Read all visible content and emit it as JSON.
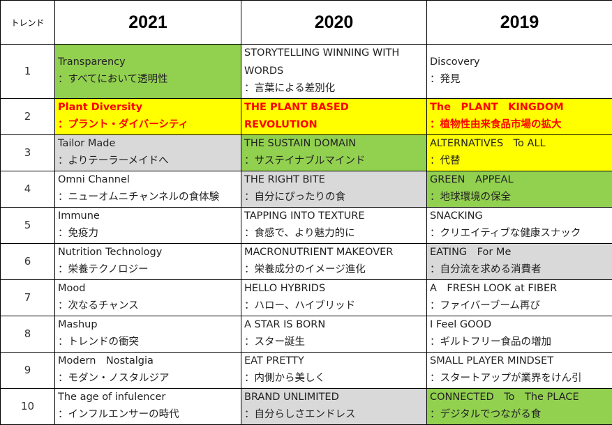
{
  "colors": {
    "green": "#92d050",
    "yellow": "#ffff00",
    "gray": "#d9d9d9",
    "white": "#ffffff",
    "highlight_text": "#ff0000"
  },
  "header": {
    "rank_label": "トレンド",
    "years": [
      "2021",
      "2020",
      "2019"
    ]
  },
  "rows": [
    {
      "rank": "1",
      "cells": [
        {
          "lines": [
            "Transparency",
            "：すべてにおいて透明性"
          ],
          "bg": "green"
        },
        {
          "lines": [
            "STORYTELLING WINNING WITH",
            "WORDS",
            "：言葉による差別化"
          ],
          "bg": "white"
        },
        {
          "lines": [
            "Discovery",
            "：発見"
          ],
          "bg": "white"
        }
      ]
    },
    {
      "rank": "2",
      "cells": [
        {
          "lines": [
            "Plant Diversity",
            "：プラント・ダイバーシティ"
          ],
          "bg": "yellow",
          "red": true
        },
        {
          "lines": [
            "THE PLANT BASED",
            "REVOLUTION"
          ],
          "bg": "yellow",
          "red": true
        },
        {
          "lines": [
            "The　PLANT　KINGDOM",
            "：植物性由来食品市場の拡大"
          ],
          "bg": "yellow",
          "red": true
        }
      ]
    },
    {
      "rank": "3",
      "cells": [
        {
          "lines": [
            "Tailor Made",
            "：よりテーラーメイドへ"
          ],
          "bg": "gray"
        },
        {
          "lines": [
            "THE SUSTAIN DOMAIN",
            "：サステイナブルマインド"
          ],
          "bg": "green"
        },
        {
          "lines": [
            "ALTERNATIVES　To ALL",
            "：代替"
          ],
          "bg": "yellow"
        }
      ]
    },
    {
      "rank": "4",
      "cells": [
        {
          "lines": [
            "Omni Channel",
            "：ニューオムニチャンネルの食体験"
          ],
          "bg": "white"
        },
        {
          "lines": [
            "THE RIGHT BITE",
            "：自分にぴったりの食"
          ],
          "bg": "gray"
        },
        {
          "lines": [
            "GREEN　APPEAL",
            "：地球環境の保全"
          ],
          "bg": "green"
        }
      ]
    },
    {
      "rank": "5",
      "cells": [
        {
          "lines": [
            "Immune",
            "：免疫力"
          ],
          "bg": "white"
        },
        {
          "lines": [
            "TAPPING INTO TEXTURE",
            "：食感で、より魅力的に"
          ],
          "bg": "white"
        },
        {
          "lines": [
            "SNACKING",
            "：クリエイティブな健康スナック"
          ],
          "bg": "white"
        }
      ]
    },
    {
      "rank": "6",
      "cells": [
        {
          "lines": [
            "Nutrition Technology",
            "：栄養テクノロジー"
          ],
          "bg": "white"
        },
        {
          "lines": [
            "MACRONUTRIENT MAKEOVER",
            "：栄養成分のイメージ進化"
          ],
          "bg": "white"
        },
        {
          "lines": [
            "EATING　For Me",
            "：自分流を求める消費者"
          ],
          "bg": "gray"
        }
      ]
    },
    {
      "rank": "7",
      "cells": [
        {
          "lines": [
            "Mood",
            "：次なるチャンス"
          ],
          "bg": "white"
        },
        {
          "lines": [
            "HELLO HYBRIDS",
            "：ハロー、ハイブリッド"
          ],
          "bg": "white"
        },
        {
          "lines": [
            "A　FRESH LOOK at FIBER",
            "：ファイバーブーム再び"
          ],
          "bg": "white"
        }
      ]
    },
    {
      "rank": "8",
      "cells": [
        {
          "lines": [
            "Mashup",
            "：トレンドの衝突"
          ],
          "bg": "white"
        },
        {
          "lines": [
            "A STAR IS BORN",
            "：スター誕生"
          ],
          "bg": "white"
        },
        {
          "lines": [
            "I Feel GOOD",
            "：ギルトフリー食品の増加"
          ],
          "bg": "white"
        }
      ]
    },
    {
      "rank": "9",
      "cells": [
        {
          "lines": [
            "Modern　Nostalgia",
            "：モダン・ノスタルジア"
          ],
          "bg": "white"
        },
        {
          "lines": [
            "EAT PRETTY",
            "：内側から美しく"
          ],
          "bg": "white"
        },
        {
          "lines": [
            "SMALL PLAYER MINDSET",
            "：スタートアップが業界をけん引"
          ],
          "bg": "white"
        }
      ]
    },
    {
      "rank": "10",
      "cells": [
        {
          "lines": [
            "The age of infulencer",
            "：インフルエンサーの時代"
          ],
          "bg": "white"
        },
        {
          "lines": [
            "BRAND UNLIMITED",
            "：自分らしさエンドレス"
          ],
          "bg": "gray"
        },
        {
          "lines": [
            "CONNECTED　To　The PLACE",
            "：デジタルでつながる食"
          ],
          "bg": "green"
        }
      ]
    }
  ]
}
